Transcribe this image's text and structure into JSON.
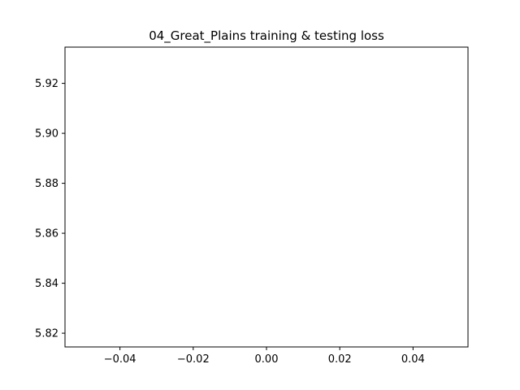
{
  "chart_data": {
    "type": "line",
    "title": "04_Great_Plains training & testing loss",
    "xlabel": "",
    "ylabel": "",
    "xlim": [
      -0.055,
      0.055
    ],
    "ylim": [
      5.8145,
      5.9345
    ],
    "x_ticks": [
      -0.04,
      -0.02,
      0.0,
      0.02,
      0.04
    ],
    "x_tick_labels": [
      "−0.04",
      "−0.02",
      "0.00",
      "0.02",
      "0.04"
    ],
    "y_ticks": [
      5.82,
      5.84,
      5.86,
      5.88,
      5.9,
      5.92
    ],
    "y_tick_labels": [
      "5.82",
      "5.84",
      "5.86",
      "5.88",
      "5.90",
      "5.92"
    ],
    "grid": false,
    "series": []
  }
}
